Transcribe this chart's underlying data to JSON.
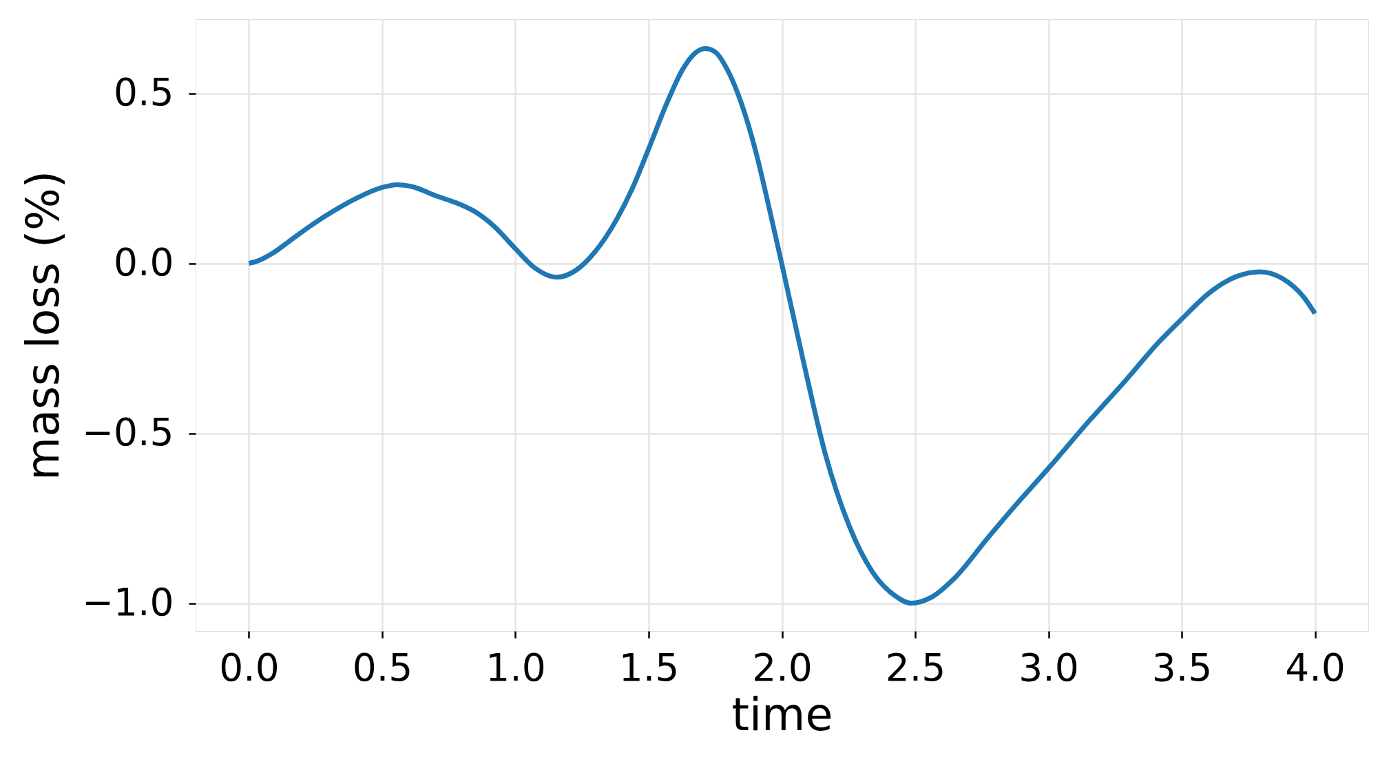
{
  "chart_data": {
    "type": "line",
    "xlabel": "time",
    "ylabel": "mass loss (%)",
    "x": [
      0,
      0.03,
      0.09,
      0.16,
      0.24,
      0.32,
      0.41,
      0.5,
      0.555,
      0.615,
      0.7,
      0.79,
      0.85,
      0.92,
      1.0,
      1.07,
      1.156,
      1.23,
      1.3,
      1.379,
      1.439,
      1.5,
      1.567,
      1.627,
      1.676,
      1.711,
      1.746,
      1.795,
      1.845,
      1.904,
      1.953,
      2.0,
      2.078,
      2.164,
      2.251,
      2.337,
      2.424,
      2.484,
      2.562,
      2.649,
      2.77,
      2.874,
      3.0,
      3.151,
      3.289,
      3.409,
      3.5,
      3.608,
      3.708,
      3.793,
      3.878,
      3.957,
      4.0
    ],
    "series": [
      {
        "color": "#1f77b4",
        "values": [
          0,
          0.006,
          0.03,
          0.07,
          0.115,
          0.155,
          0.194,
          0.223,
          0.231,
          0.225,
          0.199,
          0.174,
          0.151,
          0.109,
          0.043,
          -0.012,
          -0.041,
          -0.019,
          0.035,
          0.128,
          0.221,
          0.337,
          0.469,
          0.57,
          0.62,
          0.632,
          0.624,
          0.57,
          0.477,
          0.322,
          0.159,
          -0.004,
          -0.28,
          -0.565,
          -0.77,
          -0.905,
          -0.978,
          -1.0,
          -0.982,
          -0.925,
          -0.81,
          -0.714,
          -0.603,
          -0.465,
          -0.345,
          -0.236,
          -0.164,
          -0.084,
          -0.038,
          -0.025,
          -0.045,
          -0.099,
          -0.148
        ]
      }
    ],
    "xlim": [
      -0.2,
      4.2
    ],
    "ylim": [
      -1.082,
      0.718
    ],
    "xticks": [
      {
        "value": 0,
        "label": "0.0"
      },
      {
        "value": 0.5,
        "label": "0.5"
      },
      {
        "value": 1,
        "label": "1.0"
      },
      {
        "value": 1.5,
        "label": "1.5"
      },
      {
        "value": 2,
        "label": "2.0"
      },
      {
        "value": 2.5,
        "label": "2.5"
      },
      {
        "value": 3,
        "label": "3.0"
      },
      {
        "value": 3.5,
        "label": "3.5"
      },
      {
        "value": 4,
        "label": "4.0"
      }
    ],
    "yticks": [
      {
        "value": -1,
        "label": "−1.0"
      },
      {
        "value": -0.5,
        "label": "−0.5"
      },
      {
        "value": 0,
        "label": "0.0"
      },
      {
        "value": 0.5,
        "label": "0.5"
      }
    ],
    "grid": true
  }
}
